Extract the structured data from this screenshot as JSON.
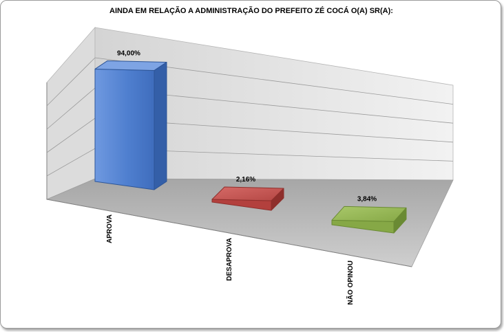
{
  "chart_data": {
    "type": "bar",
    "title": "AINDA EM RELAÇÃO A ADMINISTRAÇÃO DO PREFEITO ZÉ COCÁ O(A) SR(A):",
    "categories": [
      "APROVA",
      "DESAPROVA",
      "NÃO OPINOU"
    ],
    "values": [
      94.0,
      2.16,
      3.84
    ],
    "value_labels": [
      "94,00%",
      "2,16%",
      "3,84%"
    ],
    "ylim": [
      0,
      100
    ],
    "grid": true,
    "legend": "none",
    "three_d": true,
    "colors": [
      "#4f7fcf",
      "#c0504d",
      "#9bbb59"
    ]
  }
}
